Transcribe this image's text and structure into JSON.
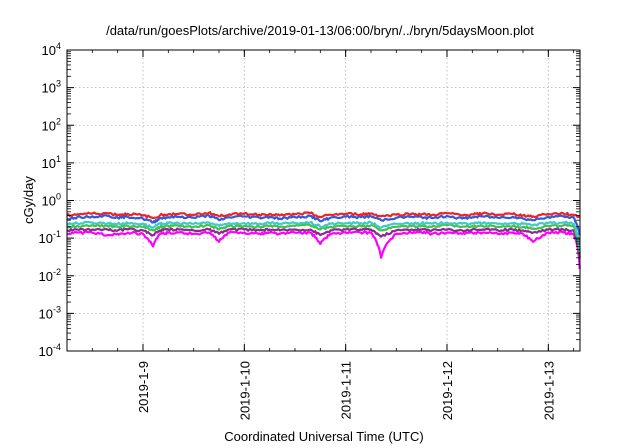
{
  "chart_data": {
    "type": "line",
    "title": "/data/run/goesPlots/archive/2019-01-13/06:00/bryn/../bryn/5daysMoon.plot",
    "xlabel": "Coordinated Universal Time (UTC)",
    "ylabel": "cGy/day",
    "yscale": "log",
    "ylim": [
      0.0001,
      10000
    ],
    "y_ticks": [
      {
        "base": "10",
        "exp": "-4",
        "value": 0.0001
      },
      {
        "base": "10",
        "exp": "-3",
        "value": 0.001
      },
      {
        "base": "10",
        "exp": "-2",
        "value": 0.01
      },
      {
        "base": "10",
        "exp": "-1",
        "value": 0.1
      },
      {
        "base": "10",
        "exp": "0",
        "value": 1
      },
      {
        "base": "10",
        "exp": "1",
        "value": 10
      },
      {
        "base": "10",
        "exp": "2",
        "value": 100
      },
      {
        "base": "10",
        "exp": "3",
        "value": 1000
      },
      {
        "base": "10",
        "exp": "4",
        "value": 10000
      }
    ],
    "xlim": [
      "2019-01-08 06:00",
      "2019-01-13 07:30"
    ],
    "x_ticks": [
      "2019-1-9",
      "2019-1-10",
      "2019-1-11",
      "2019-1-12",
      "2019-1-13"
    ],
    "grid": true,
    "series": [
      {
        "color": "#e8242d",
        "base": 0.4,
        "x": [
          0.0,
          0.1,
          0.25,
          0.4,
          0.5,
          0.6,
          0.75,
          0.85,
          0.92,
          1.0,
          1.1,
          1.25,
          1.4,
          1.5,
          1.6,
          1.75,
          1.9,
          2.0,
          2.1,
          2.25,
          2.4,
          2.5,
          2.6,
          2.75,
          2.9,
          3.0,
          3.1,
          3.25,
          3.4,
          3.5,
          3.6,
          3.75,
          3.9,
          4.0,
          4.1,
          4.25,
          4.4,
          4.5,
          4.6,
          4.75,
          4.9,
          5.0,
          5.06
        ],
        "values": [
          0.4,
          0.43,
          0.45,
          0.46,
          0.42,
          0.44,
          0.4,
          0.34,
          0.41,
          0.43,
          0.44,
          0.42,
          0.47,
          0.38,
          0.43,
          0.45,
          0.42,
          0.44,
          0.4,
          0.43,
          0.46,
          0.36,
          0.42,
          0.44,
          0.43,
          0.45,
          0.38,
          0.42,
          0.44,
          0.43,
          0.41,
          0.46,
          0.4,
          0.43,
          0.45,
          0.42,
          0.44,
          0.4,
          0.38,
          0.44,
          0.45,
          0.42,
          0.36
        ]
      },
      {
        "color": "#2f5bd8",
        "base": 0.33,
        "x": [
          0.0,
          0.1,
          0.25,
          0.4,
          0.5,
          0.6,
          0.75,
          0.85,
          0.92,
          1.0,
          1.1,
          1.25,
          1.4,
          1.5,
          1.6,
          1.75,
          1.9,
          2.0,
          2.1,
          2.25,
          2.4,
          2.5,
          2.6,
          2.75,
          2.9,
          3.0,
          3.1,
          3.25,
          3.4,
          3.5,
          3.6,
          3.75,
          3.9,
          4.0,
          4.1,
          4.25,
          4.4,
          4.5,
          4.6,
          4.75,
          4.9,
          5.0,
          5.06
        ],
        "values": [
          0.33,
          0.36,
          0.38,
          0.39,
          0.35,
          0.37,
          0.33,
          0.26,
          0.34,
          0.36,
          0.37,
          0.35,
          0.4,
          0.3,
          0.36,
          0.38,
          0.35,
          0.37,
          0.33,
          0.36,
          0.39,
          0.28,
          0.35,
          0.37,
          0.36,
          0.38,
          0.3,
          0.35,
          0.37,
          0.36,
          0.34,
          0.39,
          0.33,
          0.36,
          0.38,
          0.35,
          0.37,
          0.33,
          0.3,
          0.37,
          0.38,
          0.35,
          0.12
        ]
      },
      {
        "color": "#41c9c9",
        "base": 0.24,
        "x": [
          0.0,
          0.1,
          0.25,
          0.4,
          0.5,
          0.6,
          0.75,
          0.85,
          0.92,
          1.0,
          1.1,
          1.25,
          1.4,
          1.5,
          1.6,
          1.75,
          1.9,
          2.0,
          2.1,
          2.25,
          2.4,
          2.5,
          2.6,
          2.75,
          2.9,
          3.0,
          3.1,
          3.25,
          3.4,
          3.5,
          3.6,
          3.75,
          3.9,
          4.0,
          4.1,
          4.25,
          4.4,
          4.5,
          4.6,
          4.75,
          4.9,
          5.0,
          5.06
        ],
        "values": [
          0.24,
          0.25,
          0.26,
          0.25,
          0.24,
          0.25,
          0.24,
          0.19,
          0.24,
          0.25,
          0.25,
          0.24,
          0.26,
          0.21,
          0.25,
          0.25,
          0.24,
          0.25,
          0.24,
          0.25,
          0.26,
          0.2,
          0.24,
          0.25,
          0.25,
          0.26,
          0.19,
          0.24,
          0.25,
          0.25,
          0.24,
          0.26,
          0.24,
          0.25,
          0.25,
          0.24,
          0.25,
          0.24,
          0.22,
          0.25,
          0.26,
          0.24,
          0.05
        ]
      },
      {
        "color": "#45c04b",
        "base": 0.2,
        "x": [
          0.0,
          0.1,
          0.25,
          0.4,
          0.5,
          0.6,
          0.75,
          0.85,
          0.92,
          1.0,
          1.1,
          1.25,
          1.4,
          1.5,
          1.6,
          1.75,
          1.9,
          2.0,
          2.1,
          2.25,
          2.4,
          2.5,
          2.6,
          2.75,
          2.9,
          3.0,
          3.1,
          3.25,
          3.4,
          3.5,
          3.6,
          3.75,
          3.9,
          4.0,
          4.1,
          4.25,
          4.4,
          4.5,
          4.6,
          4.75,
          4.9,
          5.0,
          5.06
        ],
        "values": [
          0.2,
          0.21,
          0.22,
          0.21,
          0.2,
          0.21,
          0.2,
          0.16,
          0.2,
          0.21,
          0.21,
          0.2,
          0.22,
          0.17,
          0.21,
          0.21,
          0.2,
          0.21,
          0.2,
          0.21,
          0.22,
          0.17,
          0.2,
          0.21,
          0.21,
          0.22,
          0.16,
          0.2,
          0.21,
          0.21,
          0.2,
          0.22,
          0.2,
          0.21,
          0.21,
          0.2,
          0.21,
          0.2,
          0.18,
          0.21,
          0.22,
          0.2,
          0.04
        ]
      },
      {
        "color": "#8a2b8f",
        "base": 0.16,
        "x": [
          0.0,
          0.1,
          0.25,
          0.4,
          0.5,
          0.6,
          0.75,
          0.85,
          0.92,
          1.0,
          1.1,
          1.25,
          1.4,
          1.5,
          1.6,
          1.75,
          1.9,
          2.0,
          2.1,
          2.25,
          2.4,
          2.5,
          2.6,
          2.75,
          2.9,
          3.0,
          3.1,
          3.25,
          3.4,
          3.5,
          3.6,
          3.75,
          3.9,
          4.0,
          4.1,
          4.25,
          4.4,
          4.5,
          4.6,
          4.75,
          4.9,
          5.0,
          5.06
        ],
        "values": [
          0.16,
          0.17,
          0.17,
          0.17,
          0.16,
          0.17,
          0.16,
          0.12,
          0.16,
          0.17,
          0.17,
          0.16,
          0.17,
          0.13,
          0.17,
          0.17,
          0.16,
          0.17,
          0.16,
          0.17,
          0.17,
          0.12,
          0.16,
          0.17,
          0.17,
          0.17,
          0.11,
          0.16,
          0.17,
          0.17,
          0.16,
          0.17,
          0.16,
          0.17,
          0.17,
          0.16,
          0.17,
          0.16,
          0.14,
          0.17,
          0.17,
          0.16,
          0.03
        ]
      },
      {
        "color": "#ff00ff",
        "base": 0.13,
        "x": [
          0.0,
          0.1,
          0.25,
          0.4,
          0.5,
          0.6,
          0.75,
          0.85,
          0.92,
          1.0,
          1.1,
          1.25,
          1.4,
          1.5,
          1.6,
          1.75,
          1.9,
          2.0,
          2.1,
          2.25,
          2.4,
          2.5,
          2.6,
          2.75,
          2.9,
          3.0,
          3.1,
          3.25,
          3.4,
          3.5,
          3.6,
          3.75,
          3.9,
          4.0,
          4.1,
          4.25,
          4.4,
          4.5,
          4.6,
          4.75,
          4.9,
          5.0,
          5.06
        ],
        "values": [
          0.13,
          0.14,
          0.14,
          0.12,
          0.13,
          0.14,
          0.13,
          0.06,
          0.13,
          0.14,
          0.14,
          0.13,
          0.14,
          0.08,
          0.14,
          0.14,
          0.13,
          0.14,
          0.13,
          0.14,
          0.14,
          0.07,
          0.13,
          0.14,
          0.14,
          0.14,
          0.03,
          0.13,
          0.14,
          0.14,
          0.13,
          0.14,
          0.13,
          0.14,
          0.14,
          0.13,
          0.14,
          0.13,
          0.08,
          0.14,
          0.14,
          0.13,
          0.015
        ]
      }
    ]
  }
}
